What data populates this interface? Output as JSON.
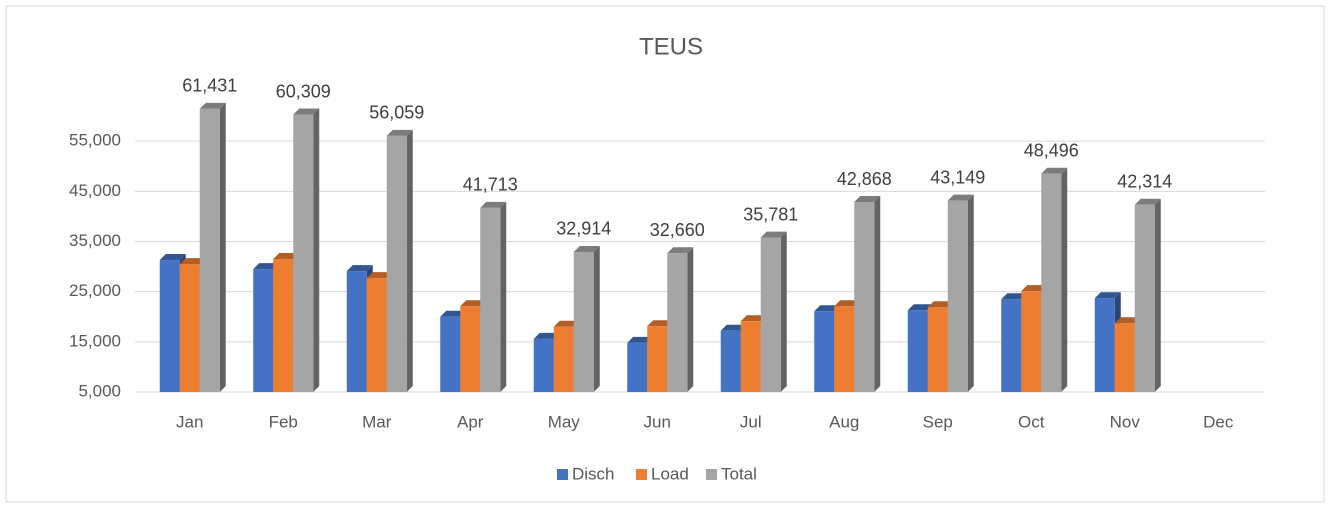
{
  "chart_data": {
    "type": "bar",
    "title": "TEUS",
    "categories": [
      "Jan",
      "Feb",
      "Mar",
      "Apr",
      "May",
      "Jun",
      "Jul",
      "Aug",
      "Sep",
      "Oct",
      "Nov",
      "Dec"
    ],
    "series": [
      {
        "name": "Disch",
        "color": "#4472c4",
        "values": [
          31300,
          29500,
          29100,
          20000,
          15600,
          14800,
          17200,
          21100,
          21300,
          23500,
          23700,
          null
        ]
      },
      {
        "name": "Load",
        "color": "#ed7d31",
        "values": [
          30500,
          31500,
          27700,
          22100,
          18000,
          18100,
          19100,
          22100,
          21900,
          25100,
          18700,
          null
        ]
      },
      {
        "name": "Total",
        "color": "#a5a5a5",
        "values": [
          61431,
          60309,
          56059,
          41713,
          32914,
          32660,
          35781,
          42868,
          43149,
          48496,
          42314,
          null
        ],
        "value_labels": [
          "61,431",
          "60,309",
          "56,059",
          "41,713",
          "32,914",
          "32,660",
          "35,781",
          "42,868",
          "43,149",
          "48,496",
          "42,314",
          null
        ]
      }
    ],
    "ylim": [
      5000,
      65000
    ],
    "yticks": [
      {
        "value": 5000,
        "label": "5,000"
      },
      {
        "value": 15000,
        "label": "15,000"
      },
      {
        "value": 25000,
        "label": "25,000"
      },
      {
        "value": 35000,
        "label": "35,000"
      },
      {
        "value": 45000,
        "label": "45,000"
      },
      {
        "value": 55000,
        "label": "55,000"
      }
    ],
    "grid": true,
    "legend": "bottom"
  }
}
